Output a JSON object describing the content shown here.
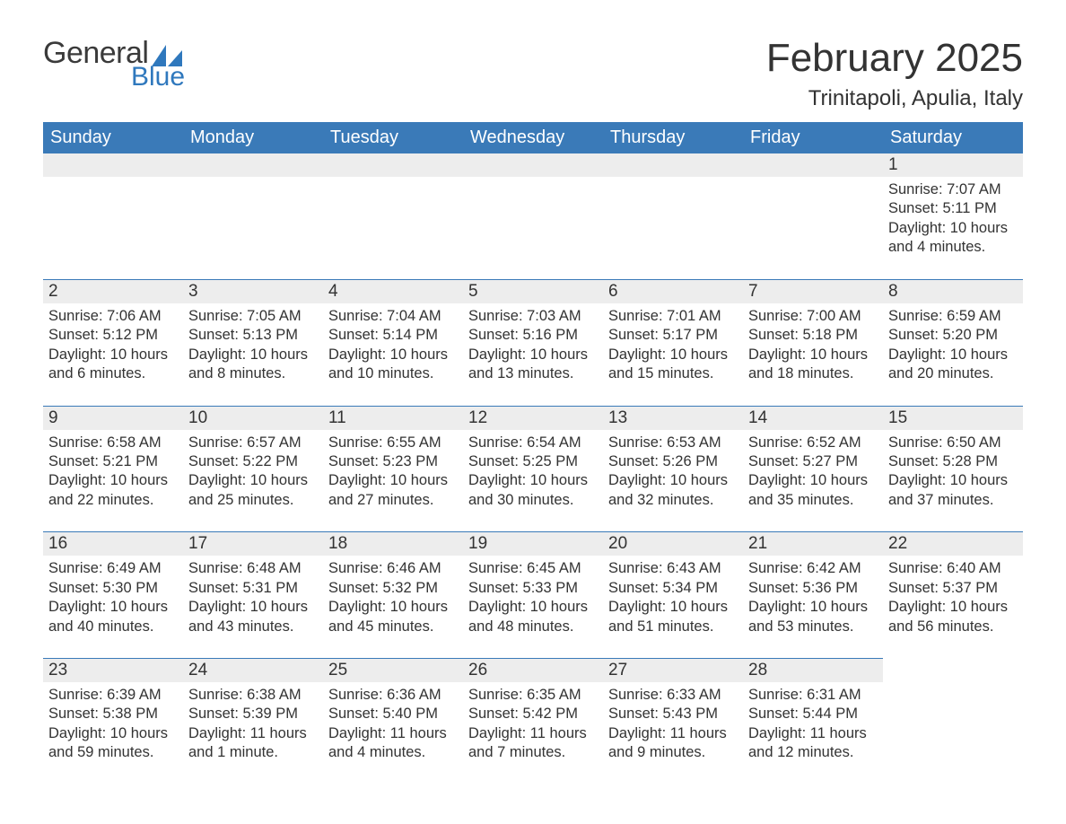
{
  "logo": {
    "word1": "General",
    "word2": "Blue",
    "text_color_general": "#3a3a3a",
    "text_color_blue": "#2f78bd",
    "sail_color": "#2f78bd"
  },
  "title": "February 2025",
  "location": "Trinitapoli, Apulia, Italy",
  "colors": {
    "header_bg": "#3a7ab8",
    "header_text": "#ffffff",
    "daynum_bg": "#ededed",
    "daynum_border": "#3a7ab8",
    "body_text": "#333333",
    "page_bg": "#ffffff"
  },
  "typography": {
    "title_fontsize": 44,
    "location_fontsize": 24,
    "weekday_fontsize": 20,
    "daynum_fontsize": 19,
    "body_fontsize": 16.5
  },
  "weekdays": [
    "Sunday",
    "Monday",
    "Tuesday",
    "Wednesday",
    "Thursday",
    "Friday",
    "Saturday"
  ],
  "weeks": [
    [
      null,
      null,
      null,
      null,
      null,
      null,
      {
        "day": "1",
        "sunrise": "Sunrise: 7:07 AM",
        "sunset": "Sunset: 5:11 PM",
        "daylight": "Daylight: 10 hours and 4 minutes."
      }
    ],
    [
      {
        "day": "2",
        "sunrise": "Sunrise: 7:06 AM",
        "sunset": "Sunset: 5:12 PM",
        "daylight": "Daylight: 10 hours and 6 minutes."
      },
      {
        "day": "3",
        "sunrise": "Sunrise: 7:05 AM",
        "sunset": "Sunset: 5:13 PM",
        "daylight": "Daylight: 10 hours and 8 minutes."
      },
      {
        "day": "4",
        "sunrise": "Sunrise: 7:04 AM",
        "sunset": "Sunset: 5:14 PM",
        "daylight": "Daylight: 10 hours and 10 minutes."
      },
      {
        "day": "5",
        "sunrise": "Sunrise: 7:03 AM",
        "sunset": "Sunset: 5:16 PM",
        "daylight": "Daylight: 10 hours and 13 minutes."
      },
      {
        "day": "6",
        "sunrise": "Sunrise: 7:01 AM",
        "sunset": "Sunset: 5:17 PM",
        "daylight": "Daylight: 10 hours and 15 minutes."
      },
      {
        "day": "7",
        "sunrise": "Sunrise: 7:00 AM",
        "sunset": "Sunset: 5:18 PM",
        "daylight": "Daylight: 10 hours and 18 minutes."
      },
      {
        "day": "8",
        "sunrise": "Sunrise: 6:59 AM",
        "sunset": "Sunset: 5:20 PM",
        "daylight": "Daylight: 10 hours and 20 minutes."
      }
    ],
    [
      {
        "day": "9",
        "sunrise": "Sunrise: 6:58 AM",
        "sunset": "Sunset: 5:21 PM",
        "daylight": "Daylight: 10 hours and 22 minutes."
      },
      {
        "day": "10",
        "sunrise": "Sunrise: 6:57 AM",
        "sunset": "Sunset: 5:22 PM",
        "daylight": "Daylight: 10 hours and 25 minutes."
      },
      {
        "day": "11",
        "sunrise": "Sunrise: 6:55 AM",
        "sunset": "Sunset: 5:23 PM",
        "daylight": "Daylight: 10 hours and 27 minutes."
      },
      {
        "day": "12",
        "sunrise": "Sunrise: 6:54 AM",
        "sunset": "Sunset: 5:25 PM",
        "daylight": "Daylight: 10 hours and 30 minutes."
      },
      {
        "day": "13",
        "sunrise": "Sunrise: 6:53 AM",
        "sunset": "Sunset: 5:26 PM",
        "daylight": "Daylight: 10 hours and 32 minutes."
      },
      {
        "day": "14",
        "sunrise": "Sunrise: 6:52 AM",
        "sunset": "Sunset: 5:27 PM",
        "daylight": "Daylight: 10 hours and 35 minutes."
      },
      {
        "day": "15",
        "sunrise": "Sunrise: 6:50 AM",
        "sunset": "Sunset: 5:28 PM",
        "daylight": "Daylight: 10 hours and 37 minutes."
      }
    ],
    [
      {
        "day": "16",
        "sunrise": "Sunrise: 6:49 AM",
        "sunset": "Sunset: 5:30 PM",
        "daylight": "Daylight: 10 hours and 40 minutes."
      },
      {
        "day": "17",
        "sunrise": "Sunrise: 6:48 AM",
        "sunset": "Sunset: 5:31 PM",
        "daylight": "Daylight: 10 hours and 43 minutes."
      },
      {
        "day": "18",
        "sunrise": "Sunrise: 6:46 AM",
        "sunset": "Sunset: 5:32 PM",
        "daylight": "Daylight: 10 hours and 45 minutes."
      },
      {
        "day": "19",
        "sunrise": "Sunrise: 6:45 AM",
        "sunset": "Sunset: 5:33 PM",
        "daylight": "Daylight: 10 hours and 48 minutes."
      },
      {
        "day": "20",
        "sunrise": "Sunrise: 6:43 AM",
        "sunset": "Sunset: 5:34 PM",
        "daylight": "Daylight: 10 hours and 51 minutes."
      },
      {
        "day": "21",
        "sunrise": "Sunrise: 6:42 AM",
        "sunset": "Sunset: 5:36 PM",
        "daylight": "Daylight: 10 hours and 53 minutes."
      },
      {
        "day": "22",
        "sunrise": "Sunrise: 6:40 AM",
        "sunset": "Sunset: 5:37 PM",
        "daylight": "Daylight: 10 hours and 56 minutes."
      }
    ],
    [
      {
        "day": "23",
        "sunrise": "Sunrise: 6:39 AM",
        "sunset": "Sunset: 5:38 PM",
        "daylight": "Daylight: 10 hours and 59 minutes."
      },
      {
        "day": "24",
        "sunrise": "Sunrise: 6:38 AM",
        "sunset": "Sunset: 5:39 PM",
        "daylight": "Daylight: 11 hours and 1 minute."
      },
      {
        "day": "25",
        "sunrise": "Sunrise: 6:36 AM",
        "sunset": "Sunset: 5:40 PM",
        "daylight": "Daylight: 11 hours and 4 minutes."
      },
      {
        "day": "26",
        "sunrise": "Sunrise: 6:35 AM",
        "sunset": "Sunset: 5:42 PM",
        "daylight": "Daylight: 11 hours and 7 minutes."
      },
      {
        "day": "27",
        "sunrise": "Sunrise: 6:33 AM",
        "sunset": "Sunset: 5:43 PM",
        "daylight": "Daylight: 11 hours and 9 minutes."
      },
      {
        "day": "28",
        "sunrise": "Sunrise: 6:31 AM",
        "sunset": "Sunset: 5:44 PM",
        "daylight": "Daylight: 11 hours and 12 minutes."
      },
      null
    ]
  ]
}
